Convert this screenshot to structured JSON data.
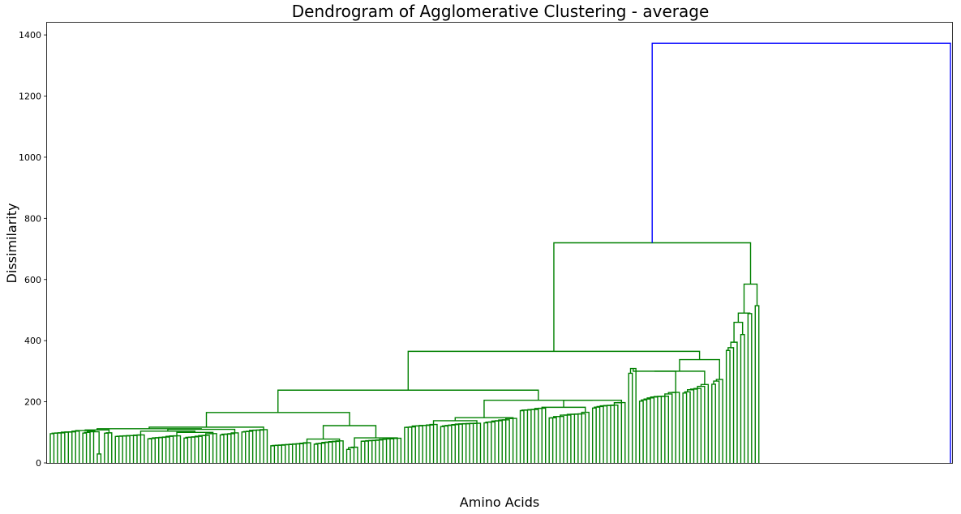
{
  "chart_data": {
    "type": "dendrogram",
    "title": "Dendrogram of Agglomerative Clustering - average",
    "xlabel": "Amino Acids",
    "ylabel": "Dissimilarity",
    "ylim": [
      0,
      1440
    ],
    "y_ticks": [
      0,
      200,
      400,
      600,
      800,
      1000,
      1200,
      1400
    ],
    "grid": false,
    "leaf_count": 250,
    "colors": {
      "main_cluster": "#008000",
      "root_link": "#0000ff"
    },
    "top_merges": [
      {
        "height": 1373,
        "color": "#0000ff",
        "note": "root merge"
      },
      {
        "height": 720,
        "color": "#008000"
      },
      {
        "height": 585,
        "color": "#008000"
      },
      {
        "height": 365,
        "color": "#008000"
      },
      {
        "height": 338,
        "color": "#008000"
      },
      {
        "height": 238,
        "color": "#008000"
      },
      {
        "height": 205,
        "color": "#008000"
      },
      {
        "height": 165,
        "color": "#008000"
      },
      {
        "height": 122,
        "color": "#008000"
      },
      {
        "height": 117,
        "color": "#008000"
      }
    ]
  }
}
